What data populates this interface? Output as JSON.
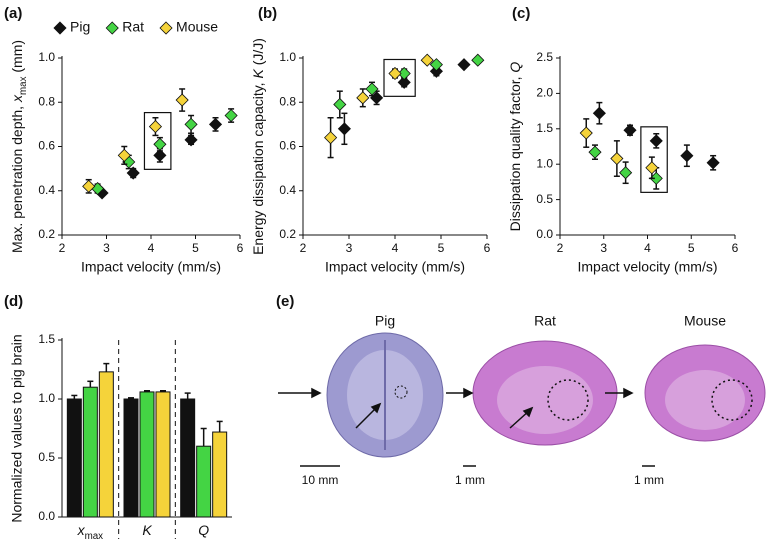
{
  "chart_data": [
    {
      "type": "scatter",
      "panel": "(a)",
      "x_label": "Impact velocity (mm/s)",
      "y_label": {
        "text": "Max. penetration depth, ",
        "var": "x",
        "sub": "max",
        "unit": " (mm)"
      },
      "xlim": [
        2,
        6
      ],
      "xticks": [
        2,
        3,
        4,
        5,
        6
      ],
      "ylim": [
        0.2,
        1.0
      ],
      "yticks": [
        0.2,
        0.4,
        0.6,
        0.8,
        {
          "value": 1.0,
          "label": "1.0"
        }
      ],
      "legend": true,
      "legend_position": "top",
      "series": [
        {
          "name": "Pig",
          "color": "#111111",
          "x": [
            2.9,
            3.6,
            4.2,
            4.9,
            5.45
          ],
          "values": [
            0.39,
            0.48,
            0.56,
            0.63,
            0.7
          ],
          "errors": [
            0.01,
            0.02,
            0.03,
            0.02,
            0.03
          ]
        },
        {
          "name": "Rat",
          "color": "#44d444",
          "x": [
            2.8,
            3.5,
            4.2,
            4.9,
            5.8
          ],
          "values": [
            0.41,
            0.53,
            0.61,
            0.7,
            0.74
          ],
          "errors": [
            0.02,
            0.03,
            0.03,
            0.04,
            0.03
          ]
        },
        {
          "name": "Mouse",
          "color": "#f5d33a",
          "x": [
            2.6,
            3.4,
            4.1,
            4.7
          ],
          "values": [
            0.42,
            0.56,
            0.69,
            0.81
          ],
          "errors": [
            0.03,
            0.04,
            0.04,
            0.05
          ]
        }
      ]
    },
    {
      "type": "scatter",
      "panel": "(b)",
      "x_label": "Impact velocity (mm/s)",
      "y_label": {
        "text": "Energy dissipation capacity, ",
        "var": "K",
        "unit": " (J/J)"
      },
      "xlim": [
        2,
        6
      ],
      "xticks": [
        2,
        3,
        4,
        5,
        6
      ],
      "ylim": [
        0.2,
        1.0
      ],
      "yticks": [
        0.2,
        0.4,
        0.6,
        0.8,
        {
          "value": 1.0,
          "label": "1.0"
        }
      ],
      "series": [
        {
          "color": "#111111",
          "x": [
            2.9,
            3.6,
            4.2,
            4.9,
            5.5
          ],
          "values": [
            0.68,
            0.82,
            0.89,
            0.94,
            0.97
          ],
          "errors": [
            0.07,
            0.03,
            0.02,
            0.02,
            0.01
          ]
        },
        {
          "color": "#44d444",
          "x": [
            2.8,
            3.5,
            4.2,
            4.9,
            5.8
          ],
          "values": [
            0.79,
            0.86,
            0.93,
            0.97,
            0.99
          ],
          "errors": [
            0.06,
            0.03,
            0.02,
            0.01,
            0.01
          ]
        },
        {
          "color": "#f5d33a",
          "x": [
            2.6,
            3.3,
            4.0,
            4.7
          ],
          "values": [
            0.64,
            0.82,
            0.93,
            0.99
          ],
          "errors": [
            0.09,
            0.04,
            0.02,
            0.01
          ]
        }
      ]
    },
    {
      "type": "scatter",
      "panel": "(c)",
      "x_label": "Impact velocity (mm/s)",
      "y_label": {
        "text": "Dissipation quality factor, ",
        "var": "Q"
      },
      "xlim": [
        2,
        6
      ],
      "xticks": [
        2,
        3,
        4,
        5,
        6
      ],
      "ylim": [
        0,
        2.5
      ],
      "yticks": [
        {
          "value": 0,
          "label": "0.0"
        },
        0.5,
        {
          "value": 1,
          "label": "1.0"
        },
        1.5,
        {
          "value": 2,
          "label": "2.0"
        },
        2.5
      ],
      "series": [
        {
          "color": "#111111",
          "x": [
            2.9,
            3.6,
            4.2,
            4.9,
            5.5
          ],
          "values": [
            1.72,
            1.48,
            1.33,
            1.12,
            1.02
          ],
          "errors": [
            0.15,
            0.07,
            0.1,
            0.15,
            0.1
          ]
        },
        {
          "color": "#44d444",
          "x": [
            2.8,
            3.5,
            4.2
          ],
          "values": [
            1.17,
            0.88,
            0.8
          ],
          "errors": [
            0.1,
            0.15,
            0.15
          ]
        },
        {
          "color": "#f5d33a",
          "x": [
            2.6,
            3.3,
            4.1
          ],
          "values": [
            1.44,
            1.08,
            0.95
          ],
          "errors": [
            0.2,
            0.25,
            0.15
          ]
        }
      ]
    },
    {
      "type": "bar",
      "panel": "(d)",
      "y_label": "Normalized values to pig brain",
      "categories": [
        {
          "var": "x",
          "sub": "max"
        },
        {
          "var": "K"
        },
        {
          "var": "Q"
        }
      ],
      "ylim": [
        0,
        1.5
      ],
      "yticks": [
        {
          "value": 0,
          "label": "0.0"
        },
        0.5,
        {
          "value": 1,
          "label": "1.0"
        },
        1.5
      ],
      "series": [
        {
          "color": "#111111",
          "values": [
            1.0,
            1.0,
            1.0
          ],
          "errors": [
            0.03,
            0.01,
            0.05
          ]
        },
        {
          "color": "#44d444",
          "values": [
            1.1,
            1.06,
            0.6
          ],
          "errors": [
            0.05,
            0.01,
            0.15
          ]
        },
        {
          "color": "#f5d33a",
          "values": [
            1.23,
            1.06,
            0.72
          ],
          "errors": [
            0.07,
            0.01,
            0.09
          ]
        }
      ]
    }
  ],
  "panel_e": {
    "label": "(e)",
    "images": [
      {
        "title": "Pig",
        "scale_bar": "10 mm"
      },
      {
        "title": "Rat",
        "scale_bar": "1 mm"
      },
      {
        "title": "Mouse",
        "scale_bar": "1 mm"
      }
    ]
  }
}
